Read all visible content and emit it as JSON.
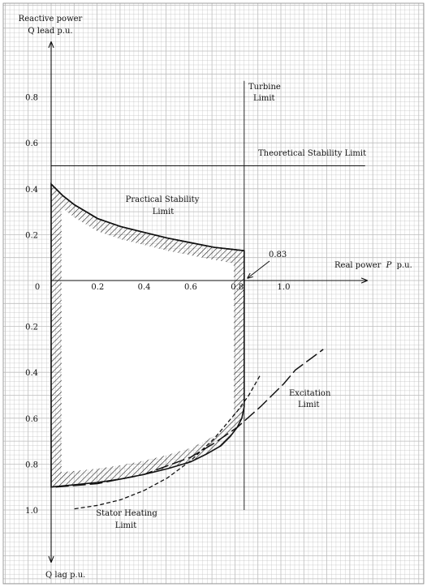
{
  "chart_data": {
    "type": "line",
    "title": "",
    "ylabel_top": [
      "Reactive power",
      "Q lead p.u."
    ],
    "ylabel_bottom": "Q lag p.u.",
    "xlabel": "Real power",
    "xlabel_symbol": "P",
    "xlabel_unit": "p.u.",
    "xlim": [
      0,
      1.35
    ],
    "ylim": [
      -1.18,
      1.1
    ],
    "x_ticks": [
      "0",
      "0.2",
      "0.4",
      "0.6",
      "0.8",
      "1.0"
    ],
    "x_tick_values": [
      0,
      0.2,
      0.4,
      0.6,
      0.8,
      1.0
    ],
    "y_ticks_lead": [
      "0.2",
      "0.4",
      "0.6",
      "0.8"
    ],
    "y_ticks_lead_values": [
      0.2,
      0.4,
      0.6,
      0.8
    ],
    "y_ticks_lag": [
      "0.2",
      "0.4",
      "0.6",
      "0.8",
      "1.0"
    ],
    "y_ticks_lag_values": [
      -0.2,
      -0.4,
      -0.6,
      -0.8,
      -1.0
    ],
    "grid": true,
    "background_color": "#ffffff",
    "grid_color": "#bdbdbd",
    "line_color": "#111111",
    "series": [
      {
        "key": "theoretical",
        "style": "thin",
        "x": [
          0,
          1.35
        ],
        "y": [
          0.5,
          0.5
        ]
      },
      {
        "key": "turbine",
        "style": "thin",
        "x": [
          0.83,
          0.83
        ],
        "y": [
          0.87,
          -1.0
        ]
      },
      {
        "key": "practical",
        "style": "solid",
        "x": [
          0,
          0.05,
          0.1,
          0.15,
          0.2,
          0.3,
          0.4,
          0.5,
          0.6,
          0.7,
          0.83
        ],
        "y": [
          0.42,
          0.37,
          0.33,
          0.3,
          0.27,
          0.235,
          0.21,
          0.185,
          0.165,
          0.145,
          0.13
        ]
      },
      {
        "key": "stator",
        "style": "short-dash",
        "x": [
          0.1,
          0.2,
          0.3,
          0.4,
          0.5,
          0.6,
          0.7,
          0.8,
          0.85,
          0.9
        ],
        "y": [
          -0.995,
          -0.98,
          -0.955,
          -0.915,
          -0.86,
          -0.785,
          -0.69,
          -0.57,
          -0.5,
          -0.41
        ]
      },
      {
        "key": "excitation",
        "style": "long-dash",
        "x": [
          0.02,
          0.2,
          0.4,
          0.6,
          0.7,
          0.8,
          0.9,
          1.0,
          1.05,
          1.17
        ],
        "y": [
          -0.9,
          -0.885,
          -0.845,
          -0.77,
          -0.71,
          -0.64,
          -0.55,
          -0.45,
          -0.39,
          -0.3
        ]
      }
    ],
    "region_boundary": {
      "x": [
        0,
        0,
        0.05,
        0.1,
        0.15,
        0.2,
        0.3,
        0.4,
        0.5,
        0.6,
        0.7,
        0.83,
        0.83,
        0.82,
        0.8,
        0.77,
        0.73,
        0.67,
        0.6,
        0.5,
        0.4,
        0.3,
        0.2,
        0.1,
        0.05,
        0
      ],
      "y": [
        -0.9,
        0.42,
        0.37,
        0.33,
        0.3,
        0.27,
        0.235,
        0.21,
        0.185,
        0.165,
        0.145,
        0.13,
        -0.55,
        -0.6,
        -0.64,
        -0.68,
        -0.72,
        -0.755,
        -0.79,
        -0.82,
        -0.845,
        -0.865,
        -0.88,
        -0.89,
        -0.895,
        -0.9
      ]
    },
    "annotations": {
      "turbine": [
        "Turbine",
        "Limit"
      ],
      "theoretical": "Theoretical Stability Limit",
      "practical": [
        "Practical Stability",
        "Limit"
      ],
      "callout_value": "0.83",
      "excitation": [
        "Excitation",
        "Limit"
      ],
      "stator": [
        "Stator Heating",
        "Limit"
      ]
    }
  }
}
